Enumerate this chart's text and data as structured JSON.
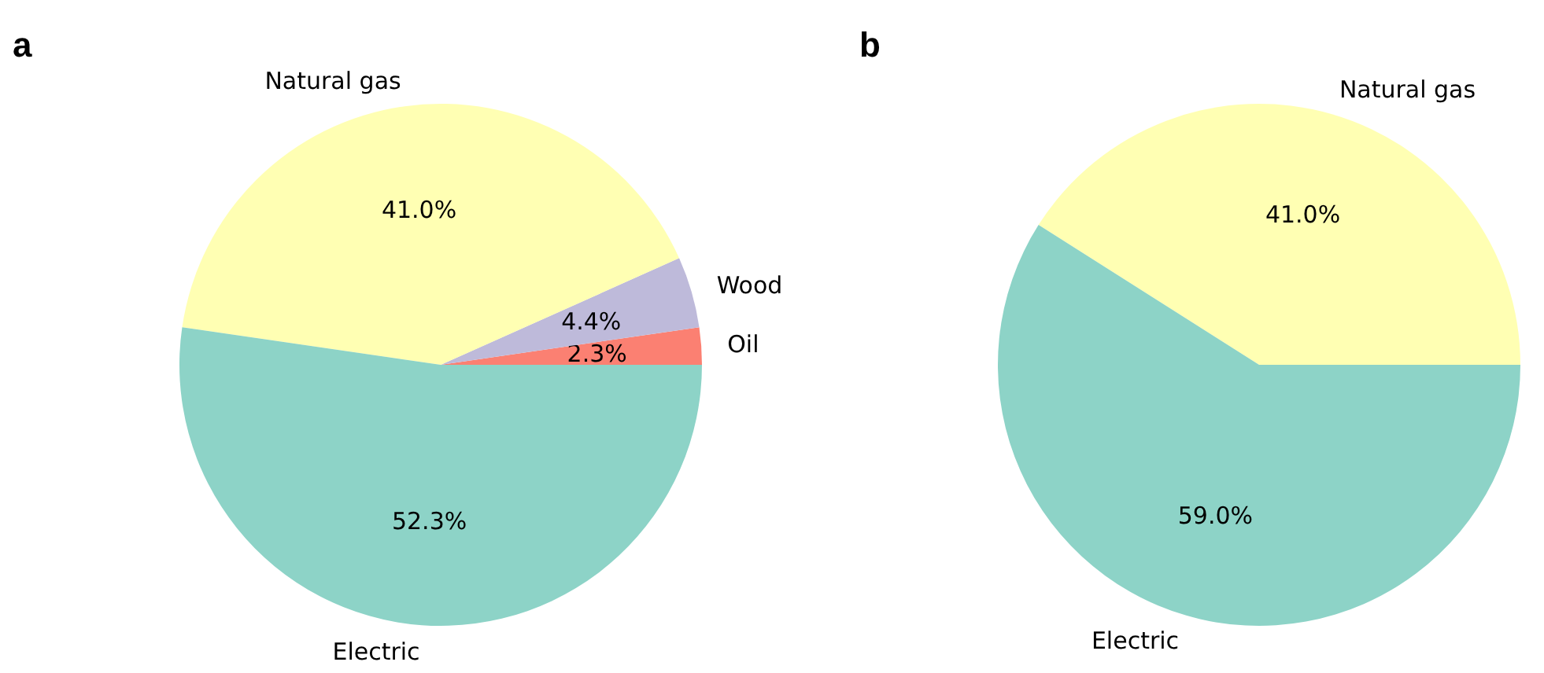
{
  "chart_data": [
    {
      "type": "pie",
      "title": "a",
      "categories": [
        "Oil",
        "Wood",
        "Natural gas",
        "Electric"
      ],
      "values": [
        2.3,
        4.4,
        41.0,
        52.3
      ],
      "colors": [
        "#fb8072",
        "#bebada",
        "#ffffb3",
        "#8dd3c7"
      ],
      "value_labels": [
        "2.3%",
        "4.4%",
        "41.0%",
        "52.3%"
      ]
    },
    {
      "type": "pie",
      "title": "b",
      "categories": [
        "Natural gas",
        "Electric"
      ],
      "values": [
        41.0,
        59.0
      ],
      "colors": [
        "#ffffb3",
        "#8dd3c7"
      ],
      "value_labels": [
        "41.0%",
        "59.0%"
      ]
    }
  ]
}
